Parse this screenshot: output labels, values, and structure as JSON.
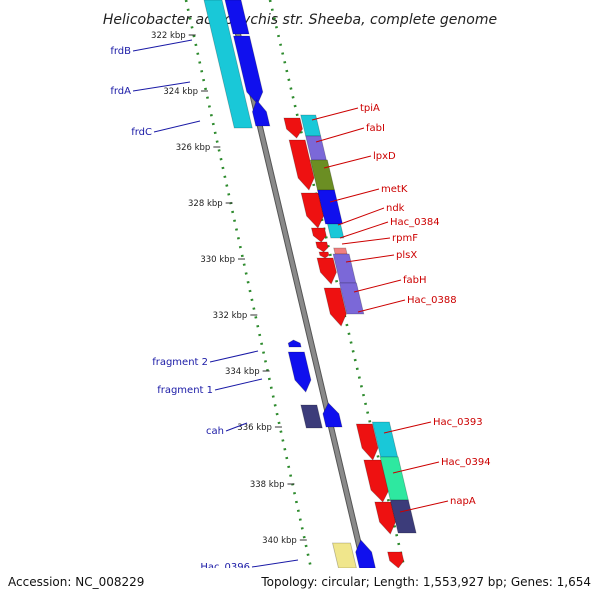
{
  "title": "Helicobacter acinonychis str. Sheeba, complete genome",
  "footer": {
    "accession": "Accession: NC_008229",
    "info": "Topology: circular; Length: 1,553,927 bp; Genes: 1,654"
  },
  "colors": {
    "backbone": "#8a8a8a",
    "dotted_track": "#2e8b2e",
    "label_left": "#1a1aa6",
    "label_right": "#cc0000",
    "red": "#ee1111",
    "blue": "#1010ee",
    "cyan": "#19c8d8",
    "purple": "#7b68d8",
    "olive": "#6b8e23",
    "seagreen": "#2ee8a0",
    "darkslate": "#3c3c7a",
    "pink": "#f08080",
    "khaki": "#f0e68c"
  },
  "ticks": [
    "322 kbp",
    "324 kbp",
    "326 kbp",
    "328 kbp",
    "330 kbp",
    "332 kbp",
    "334 kbp",
    "336 kbp",
    "338 kbp",
    "340 kbp"
  ],
  "genes_left": [
    "frdB",
    "frdA",
    "frdC",
    "fragment 2",
    "fragment 1",
    "cah",
    "Hac_0396"
  ],
  "genes_right": [
    "tpiA",
    "fabI",
    "lpxD",
    "metK",
    "ndk",
    "Hac_0384",
    "rpmF",
    "plsX",
    "fabH",
    "Hac_0388",
    "Hac_0393",
    "Hac_0394",
    "napA"
  ]
}
